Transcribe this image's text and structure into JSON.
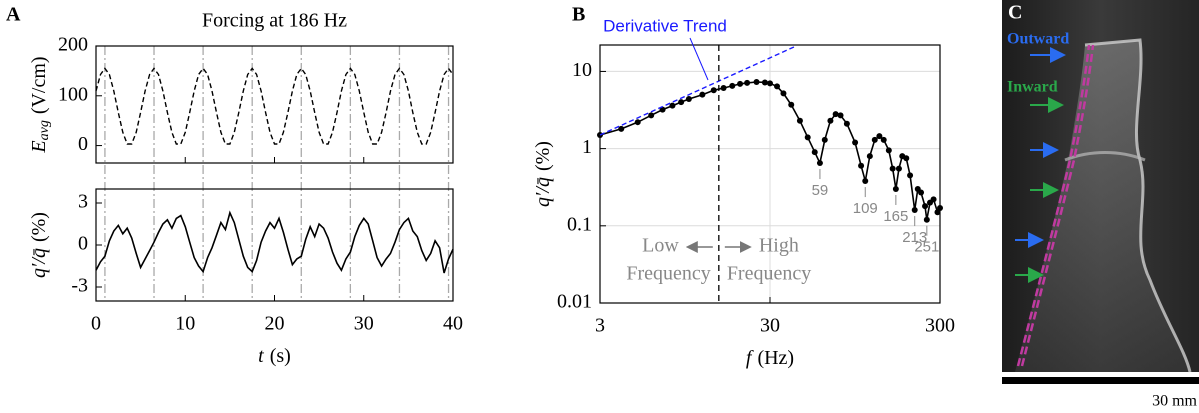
{
  "chart_data": [
    {
      "type": "line",
      "panel": "A",
      "title": "Forcing at 186 Hz",
      "y_label": {
        "symbol": "E",
        "subscript": "avg",
        "unit": "(V/cm)"
      },
      "xlim": [
        0,
        40
      ],
      "xticks": [
        0,
        10,
        20,
        30,
        40
      ],
      "ylim": [
        -35,
        200
      ],
      "yticks": [
        0,
        100,
        200
      ],
      "vlines": [
        1,
        6.5,
        12,
        17.5,
        23,
        28.5,
        34,
        39.5
      ],
      "x": [
        0,
        0.5,
        1,
        1.5,
        2,
        2.5,
        3,
        3.5,
        4,
        4.5,
        5,
        5.5,
        6,
        6.5,
        7,
        7.5,
        8,
        8.5,
        9,
        9.5,
        10,
        10.5,
        11,
        11.5,
        12,
        12.5,
        13,
        13.5,
        14,
        14.5,
        15,
        15.5,
        16,
        16.5,
        17,
        17.5,
        18,
        18.5,
        19,
        19.5,
        20,
        20.5,
        21,
        21.5,
        22,
        22.5,
        23,
        23.5,
        24,
        24.5,
        25,
        25.5,
        26,
        26.5,
        27,
        27.5,
        28,
        28.5,
        29,
        29.5,
        30,
        30.5,
        31,
        31.5,
        32,
        32.5,
        33,
        33.5,
        34,
        34.5,
        35,
        35.5,
        36,
        36.5,
        37,
        37.5,
        38,
        38.5,
        39,
        39.5,
        40
      ],
      "series": [
        {
          "color": "#000000",
          "style": "dashed",
          "values": [
            109.7,
            142.7,
            155,
            142.7,
            109.7,
            66.5,
            26.7,
            3.1,
            3.1,
            26.7,
            66.5,
            109.7,
            142.7,
            155,
            142.7,
            109.7,
            66.5,
            26.7,
            3.1,
            3.1,
            26.7,
            66.5,
            109.7,
            142.7,
            155,
            142.7,
            109.7,
            66.5,
            26.7,
            3.1,
            3.1,
            26.7,
            66.5,
            109.7,
            142.7,
            155,
            142.7,
            109.7,
            66.5,
            26.7,
            3.1,
            3.1,
            26.7,
            66.5,
            109.7,
            142.7,
            155,
            142.7,
            109.7,
            66.5,
            26.7,
            3.1,
            3.1,
            26.7,
            66.5,
            109.7,
            142.7,
            155,
            142.7,
            109.7,
            66.5,
            26.7,
            3.1,
            3.1,
            26.7,
            66.5,
            109.7,
            142.7,
            155,
            142.7,
            109.7,
            66.5,
            26.7,
            3.1,
            3.1,
            26.7,
            66.5,
            109.7,
            142.7,
            155,
            142.7
          ]
        }
      ]
    },
    {
      "type": "line",
      "x_label": {
        "symbol": "t",
        "unit": "(s)"
      },
      "y_label": {
        "symbol": "q′/q̄",
        "unit": "(%)"
      },
      "xlim": [
        0,
        40
      ],
      "xticks": [
        0,
        10,
        20,
        30,
        40
      ],
      "ylim": [
        -4,
        4
      ],
      "yticks": [
        3,
        0,
        -3
      ],
      "x": [
        0,
        0.5,
        1,
        1.5,
        2,
        2.5,
        3,
        3.5,
        4,
        4.5,
        5,
        5.5,
        6,
        6.5,
        7,
        7.5,
        8,
        8.5,
        9,
        9.5,
        10,
        10.5,
        11,
        11.5,
        12,
        12.5,
        13,
        13.5,
        14,
        14.5,
        15,
        15.5,
        16,
        16.5,
        17,
        17.5,
        18,
        18.5,
        19,
        19.5,
        20,
        20.5,
        21,
        21.5,
        22,
        22.5,
        23,
        23.5,
        24,
        24.5,
        25,
        25.5,
        26,
        26.5,
        27,
        27.5,
        28,
        28.5,
        29,
        29.5,
        30,
        30.5,
        31,
        31.5,
        32,
        32.5,
        33,
        33.5,
        34,
        34.5,
        35,
        35.5,
        36,
        36.5,
        37,
        37.5,
        38,
        38.5,
        39,
        39.5,
        40
      ],
      "series": [
        {
          "color": "#000000",
          "style": "solid",
          "values": [
            -1.8,
            -1.2,
            -0.8,
            0.3,
            1.0,
            1.4,
            0.8,
            1.2,
            0.5,
            -0.6,
            -1.6,
            -1.0,
            -0.4,
            0.2,
            0.9,
            1.5,
            1.8,
            1.2,
            1.9,
            2.1,
            1.3,
            0.2,
            -0.9,
            -1.5,
            -1.9,
            -0.9,
            -0.2,
            0.7,
            1.6,
            1.1,
            2.3,
            1.6,
            0.4,
            -0.8,
            -1.6,
            -1.9,
            -1.1,
            0.2,
            1.0,
            1.6,
            1.2,
            1.9,
            0.9,
            -0.3,
            -1.4,
            -1.0,
            -0.8,
            0.4,
            1.3,
            0.6,
            1.5,
            1.2,
            0.5,
            -0.5,
            -1.3,
            -1.8,
            -1.0,
            -0.5,
            0.6,
            1.4,
            1.9,
            1.5,
            0.3,
            -0.9,
            -1.5,
            -1.0,
            -0.6,
            0.2,
            1.1,
            1.6,
            1.9,
            1.0,
            0.6,
            -0.4,
            -1.1,
            -0.6,
            0.3,
            -0.2,
            -2.0,
            -1.0,
            -0.3
          ]
        }
      ]
    },
    {
      "type": "line",
      "panel": "B",
      "log_x": true,
      "log_y": true,
      "grid": true,
      "x_label": {
        "symbol": "f",
        "unit": "(Hz)"
      },
      "y_label": {
        "symbol": "q′/q̄",
        "unit": "(%)"
      },
      "xlim": [
        3,
        300
      ],
      "xticks": [
        3,
        30,
        300
      ],
      "ylim": [
        0.01,
        22
      ],
      "yticks": [
        0.01,
        0.1,
        1,
        10
      ],
      "divider": 15,
      "regions": {
        "low": [
          "Low",
          "Frequency"
        ],
        "high": [
          "High",
          "Frequency"
        ]
      },
      "trend_label": "Derivative Trend",
      "dip_labels": [
        59,
        109,
        165,
        213,
        251
      ],
      "series": [
        {
          "color": "#000000",
          "style": "solid",
          "markers": true,
          "x": [
            3,
            4,
            5,
            6,
            7,
            8,
            9,
            10,
            12,
            14,
            16,
            18,
            20,
            22,
            25,
            28,
            30,
            33,
            36,
            40,
            45,
            50,
            55,
            59,
            63,
            68,
            73,
            78,
            85,
            95,
            103,
            109,
            116,
            124,
            132,
            140,
            150,
            158,
            165,
            172,
            180,
            190,
            200,
            213,
            222,
            232,
            245,
            251,
            262,
            275,
            290,
            300
          ],
          "values": [
            1.5,
            1.8,
            2.2,
            2.7,
            3.2,
            3.6,
            4,
            4.4,
            5,
            5.7,
            6.1,
            6.5,
            6.9,
            7.1,
            7.3,
            7.2,
            7,
            6.4,
            5.2,
            3.7,
            2.3,
            1.4,
            0.9,
            0.65,
            1.3,
            2.3,
            2.8,
            2.7,
            2.1,
            1.2,
            0.6,
            0.38,
            0.8,
            1.3,
            1.45,
            1.3,
            0.95,
            0.55,
            0.3,
            0.55,
            0.8,
            0.75,
            0.45,
            0.16,
            0.3,
            0.27,
            0.18,
            0.12,
            0.2,
            0.22,
            0.15,
            0.17
          ]
        },
        {
          "color": "#1a1aff",
          "style": "dashed",
          "x": [
            3,
            42
          ],
          "values": [
            1.5,
            21
          ]
        }
      ]
    }
  ],
  "panel_c": {
    "label": "C",
    "outward": "Outward",
    "inward": "Inward",
    "scale_bar": "30 mm"
  }
}
